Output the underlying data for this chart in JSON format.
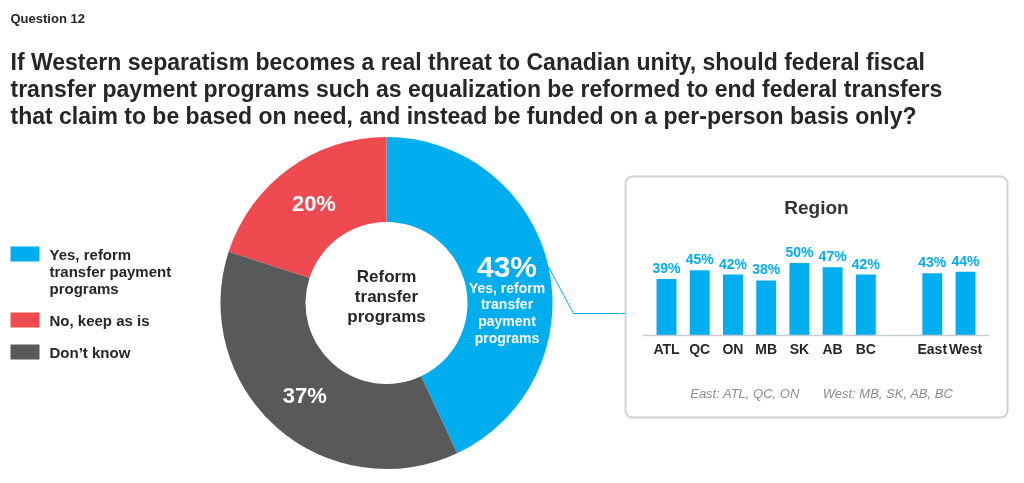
{
  "chart_data": [
    {
      "type": "donut",
      "title": "If Western separatism becomes a real threat to Canadian unity, should federal fiscal transfer payment programs such as equalization be reformed to end federal transfers that claim to be based on need, and instead be funded on a per-person basis only?",
      "categories": [
        "Yes, reform transfer payment programs",
        "No, keep as is",
        "Don’t know"
      ],
      "values": [
        43,
        20,
        37
      ],
      "colors": [
        "#00aeef",
        "#ef4a4f",
        "#58595b"
      ],
      "value_labels": [
        "43%",
        "20%",
        "37%"
      ],
      "legend": "left",
      "annotations": [
        "Question 12",
        "Reform transfer programs",
        "Yes, reform transfer payment programs"
      ]
    },
    {
      "type": "bar",
      "title": "Region",
      "categories": [
        "ATL",
        "QC",
        "ON",
        "MB",
        "SK",
        "AB",
        "BC",
        null,
        "East",
        "West"
      ],
      "values": [
        39,
        45,
        42,
        38,
        50,
        47,
        42,
        null,
        43,
        44
      ],
      "color": "#00aeef",
      "value_labels": [
        "39%",
        "45%",
        "42%",
        "38%",
        "50%",
        "47%",
        "42%",
        null,
        "43%",
        "44%"
      ],
      "annotations": [
        "East: ATL, QC, ON",
        "West: MB, SK, AB, BC"
      ]
    }
  ]
}
